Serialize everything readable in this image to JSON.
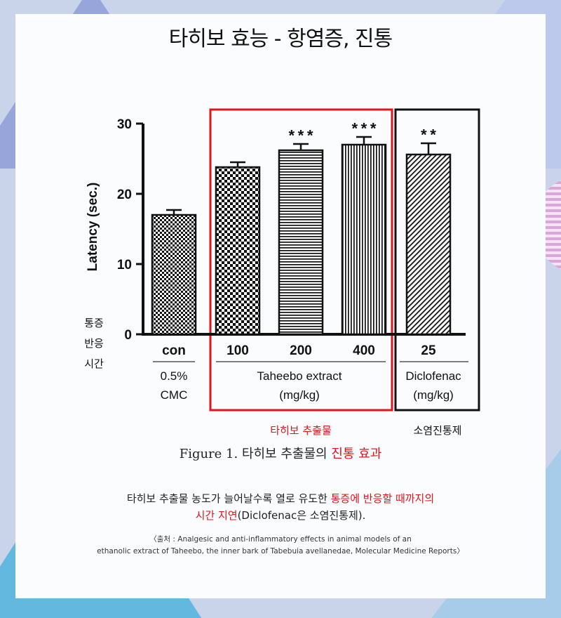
{
  "page": {
    "title": "타히보 효능 - 항염증, 진통",
    "y_side_label": [
      "통증",
      "반응",
      "시간"
    ],
    "group_taheebo_caption": "타히보 추출물",
    "group_control_caption": "소염진통제",
    "figure_caption_prefix": "Figure 1. 타히보 추출물의 ",
    "figure_caption_highlight": "진통 효과",
    "description_line1_normal": "타히보 추출물 농도가 늘어날수록 열로 유도한 ",
    "description_line1_highlight": "통증에 반응할 때까지의",
    "description_line2_highlight": "시간 지연",
    "description_line2_normal": "(Diclofenac은 소염진통제).",
    "source_line1": "〈출처 : Analgesic and anti-inflammatory effects in animal models of an",
    "source_line2": "ethanolic extract of Taheebo, the inner bark of Tabebuia avellanedae, Molecular Medicine Reports〉",
    "colors": {
      "accent_red": "#e1151b",
      "frame_black": "#111111",
      "panel": "#fbfcfe"
    }
  },
  "chart_data": {
    "type": "bar",
    "ylabel": "Latency (sec.)",
    "ylim": [
      0,
      30
    ],
    "yticks": [
      0,
      10,
      20,
      30
    ],
    "categories": [
      "con",
      "100",
      "200",
      "400",
      "25"
    ],
    "values": [
      17.0,
      23.8,
      26.2,
      27.0,
      25.6
    ],
    "errors": [
      0.7,
      0.7,
      0.9,
      1.1,
      1.6
    ],
    "significance": [
      "",
      "",
      "***",
      "***",
      "**"
    ],
    "patterns": [
      "checker-small",
      "checker",
      "horizontal",
      "vertical",
      "diagonal"
    ],
    "group_labels": [
      {
        "lines": [
          "0.5%",
          "CMC"
        ]
      },
      {
        "lines": [
          "Taheebo extract",
          "(mg/kg)"
        ]
      },
      {
        "lines": [
          "Diclofenac",
          "(mg/kg)"
        ]
      }
    ]
  }
}
